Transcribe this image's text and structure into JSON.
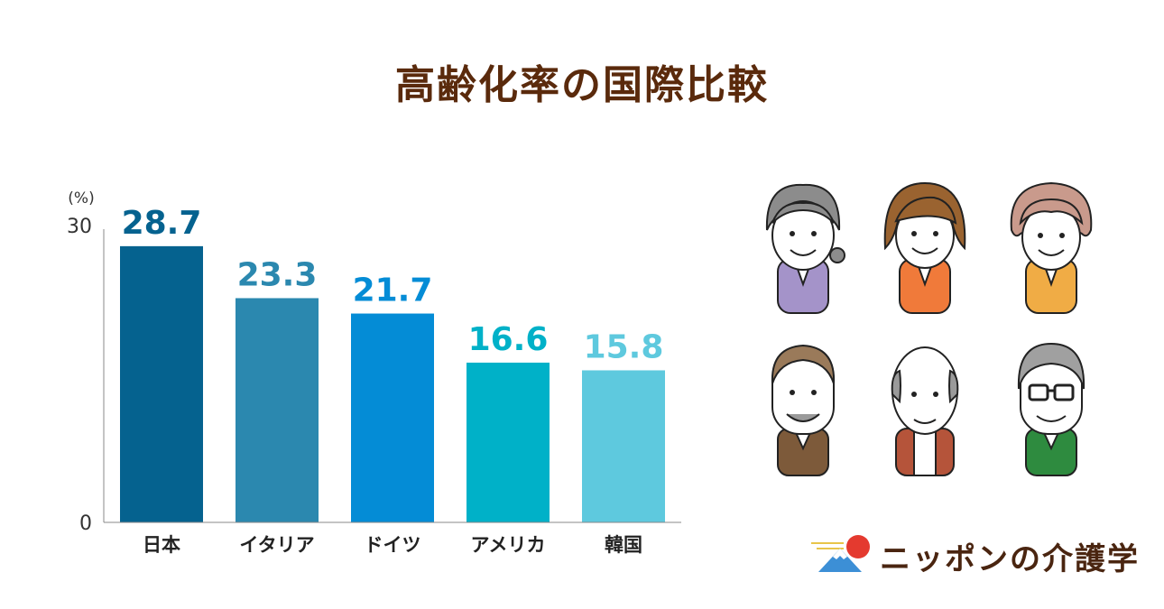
{
  "title": "高齢化率の国際比較",
  "chart_data": {
    "type": "bar",
    "title": "高齢化率の国際比較",
    "unit_label": "(%)",
    "categories": [
      "日本",
      "イタリア",
      "ドイツ",
      "アメリカ",
      "韓国"
    ],
    "values": [
      28.7,
      23.3,
      21.7,
      16.6,
      15.8
    ],
    "value_labels": [
      "28.7",
      "23.3",
      "21.7",
      "16.6",
      "15.8"
    ],
    "colors": [
      "#05628f",
      "#2b88af",
      "#048cd6",
      "#00b1c8",
      "#5ec9de"
    ],
    "yticks": [
      "30",
      "0"
    ],
    "ylim": [
      0,
      30
    ],
    "grid": false,
    "legend": "none"
  },
  "logo": {
    "text": "ニッポンの介護学"
  }
}
